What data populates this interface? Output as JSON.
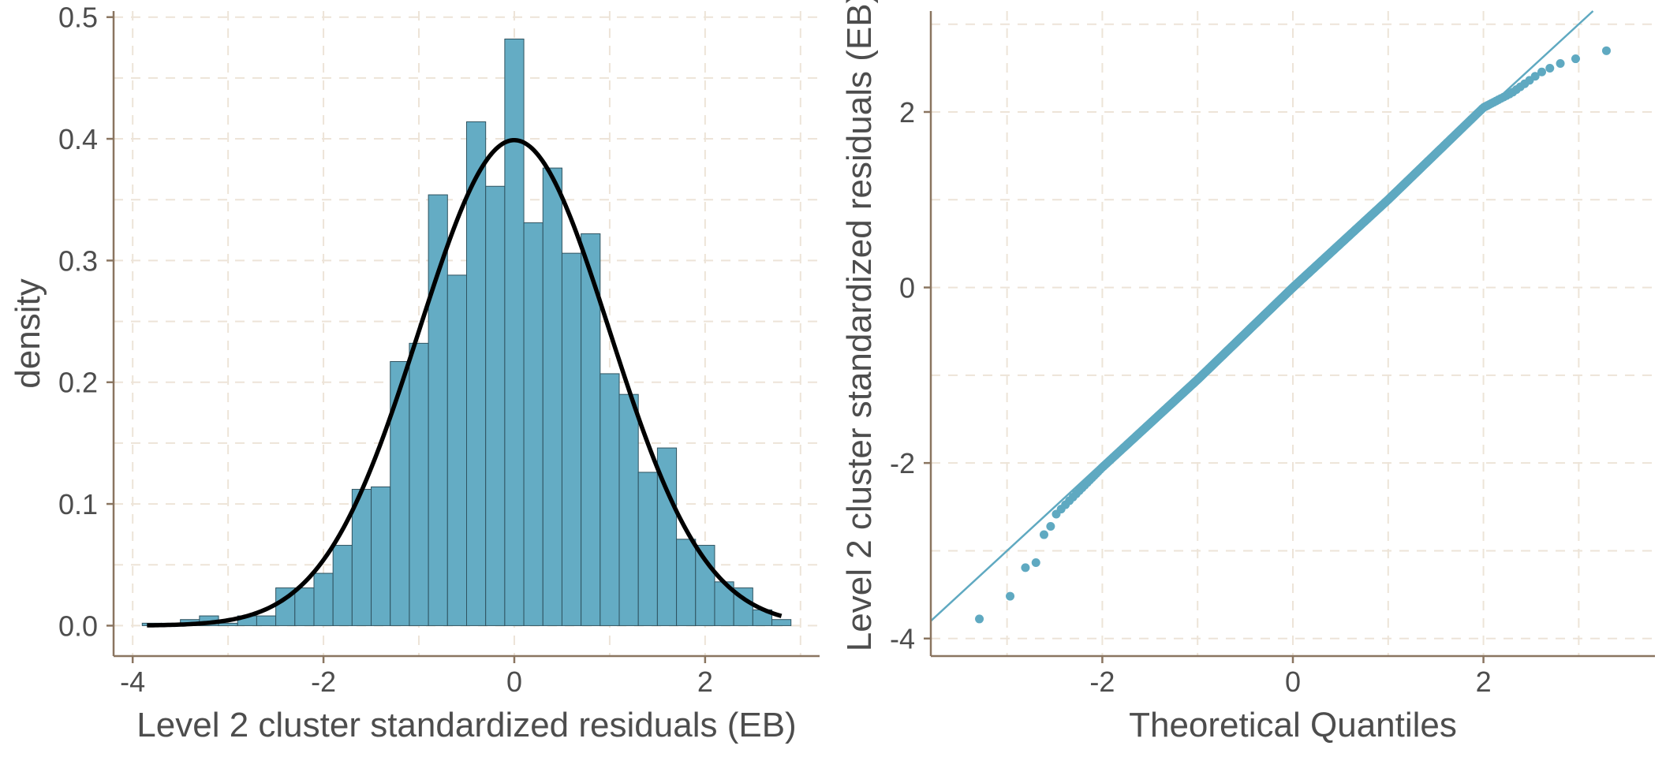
{
  "colors": {
    "bar_fill": "#64acc4",
    "bar_stroke": "#2f5360",
    "curve": "#000000",
    "points": "#5fa9c1",
    "grid": "#ede4d8",
    "axis": "#8a7560",
    "text": "#4d4d4d"
  },
  "chart_data": [
    {
      "type": "bar",
      "subtype": "histogram with normal density curve",
      "xlabel": "Level 2 cluster standardized residuals (EB)",
      "ylabel": "density",
      "xlim": [
        -4.2,
        3.2
      ],
      "ylim": [
        -0.025,
        0.505
      ],
      "xticks": [
        -4,
        -2,
        0,
        2
      ],
      "xtick_labels": [
        "-4",
        "-2",
        "0",
        "2"
      ],
      "yticks": [
        0.0,
        0.1,
        0.2,
        0.3,
        0.4,
        0.5
      ],
      "ytick_labels": [
        "0.0",
        "0.1",
        "0.2",
        "0.3",
        "0.4",
        "0.5"
      ],
      "grid": true,
      "bin_width": 0.2,
      "bins": [
        {
          "x0": -3.9,
          "x1": -3.7,
          "density": 0.002
        },
        {
          "x0": -3.7,
          "x1": -3.5,
          "density": 0.002
        },
        {
          "x0": -3.5,
          "x1": -3.3,
          "density": 0.005
        },
        {
          "x0": -3.3,
          "x1": -3.1,
          "density": 0.008
        },
        {
          "x0": -3.1,
          "x1": -2.9,
          "density": 0.002
        },
        {
          "x0": -2.9,
          "x1": -2.7,
          "density": 0.008
        },
        {
          "x0": -2.7,
          "x1": -2.5,
          "density": 0.008
        },
        {
          "x0": -2.5,
          "x1": -2.3,
          "density": 0.031
        },
        {
          "x0": -2.3,
          "x1": -2.1,
          "density": 0.031
        },
        {
          "x0": -2.1,
          "x1": -1.9,
          "density": 0.043
        },
        {
          "x0": -1.9,
          "x1": -1.7,
          "density": 0.066
        },
        {
          "x0": -1.7,
          "x1": -1.5,
          "density": 0.112
        },
        {
          "x0": -1.5,
          "x1": -1.3,
          "density": 0.114
        },
        {
          "x0": -1.3,
          "x1": -1.1,
          "density": 0.217
        },
        {
          "x0": -1.1,
          "x1": -0.9,
          "density": 0.232
        },
        {
          "x0": -0.9,
          "x1": -0.7,
          "density": 0.354
        },
        {
          "x0": -0.7,
          "x1": -0.5,
          "density": 0.288
        },
        {
          "x0": -0.5,
          "x1": -0.3,
          "density": 0.414
        },
        {
          "x0": -0.3,
          "x1": -0.1,
          "density": 0.361
        },
        {
          "x0": -0.1,
          "x1": 0.1,
          "density": 0.482
        },
        {
          "x0": 0.1,
          "x1": 0.3,
          "density": 0.331
        },
        {
          "x0": 0.3,
          "x1": 0.5,
          "density": 0.376
        },
        {
          "x0": 0.5,
          "x1": 0.7,
          "density": 0.306
        },
        {
          "x0": 0.7,
          "x1": 0.9,
          "density": 0.322
        },
        {
          "x0": 0.9,
          "x1": 1.1,
          "density": 0.207
        },
        {
          "x0": 1.1,
          "x1": 1.3,
          "density": 0.19
        },
        {
          "x0": 1.3,
          "x1": 1.5,
          "density": 0.126
        },
        {
          "x0": 1.5,
          "x1": 1.7,
          "density": 0.146
        },
        {
          "x0": 1.7,
          "x1": 1.9,
          "density": 0.071
        },
        {
          "x0": 1.9,
          "x1": 2.1,
          "density": 0.066
        },
        {
          "x0": 2.1,
          "x1": 2.3,
          "density": 0.036
        },
        {
          "x0": 2.3,
          "x1": 2.5,
          "density": 0.031
        },
        {
          "x0": 2.5,
          "x1": 2.7,
          "density": 0.013
        },
        {
          "x0": 2.7,
          "x1": 2.9,
          "density": 0.005
        }
      ],
      "overlay_curve": {
        "type": "normal_density",
        "mean": 0,
        "sd": 1,
        "x_range": [
          -3.85,
          2.8
        ]
      }
    },
    {
      "type": "scatter",
      "subtype": "normal QQ plot with reference line",
      "xlabel": "Theoretical Quantiles",
      "ylabel": "Level 2 cluster standardized residuals (EB)",
      "xlim": [
        -3.8,
        3.8
      ],
      "ylim": [
        -4.2,
        3.15
      ],
      "xticks": [
        -2,
        0,
        2
      ],
      "xtick_labels": [
        "-2",
        "0",
        "2"
      ],
      "yticks": [
        -4,
        -2,
        0,
        2
      ],
      "ytick_labels": [
        "-4",
        "-2",
        "0",
        "2"
      ],
      "grid": true,
      "reference_line": {
        "intercept": 0,
        "slope": 1
      },
      "sample_size": 1000,
      "points_sample": [
        {
          "x": -3.4,
          "y": -3.85
        },
        {
          "x": -3.1,
          "y": -3.65
        },
        {
          "x": -2.95,
          "y": -3.5
        },
        {
          "x": -2.85,
          "y": -3.45
        },
        {
          "x": -2.8,
          "y": -3.15
        },
        {
          "x": -2.73,
          "y": -3.14
        },
        {
          "x": -2.66,
          "y": -3.13
        },
        {
          "x": -2.62,
          "y": -2.82
        },
        {
          "x": -2.57,
          "y": -2.8
        },
        {
          "x": -2.5,
          "y": -2.6
        },
        {
          "x": -2.0,
          "y": -2.05
        },
        {
          "x": -1.0,
          "y": -1.05
        },
        {
          "x": 0.0,
          "y": 0.0
        },
        {
          "x": 1.0,
          "y": 1.0
        },
        {
          "x": 2.0,
          "y": 2.05
        },
        {
          "x": 2.3,
          "y": 2.22
        },
        {
          "x": 2.6,
          "y": 2.45
        },
        {
          "x": 2.8,
          "y": 2.55
        },
        {
          "x": 2.95,
          "y": 2.6
        },
        {
          "x": 3.1,
          "y": 2.65
        },
        {
          "x": 3.25,
          "y": 2.66
        },
        {
          "x": 3.4,
          "y": 2.8
        },
        {
          "x": 3.6,
          "y": 2.8
        }
      ]
    }
  ]
}
